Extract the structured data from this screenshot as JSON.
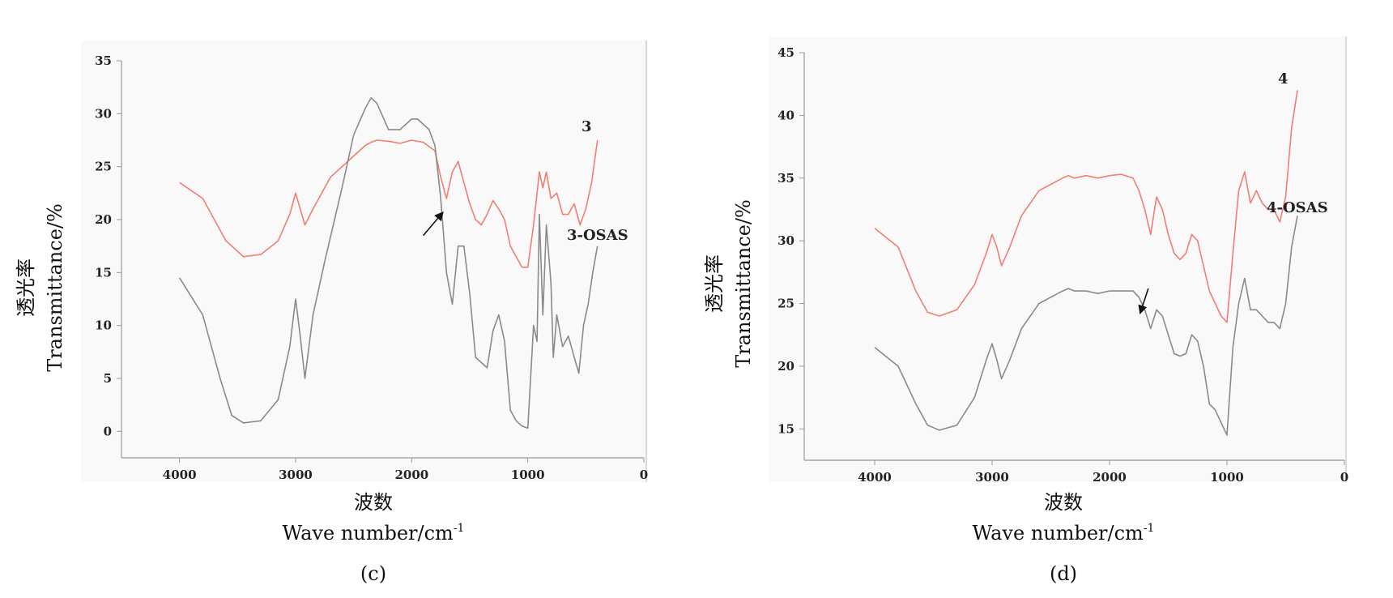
{
  "chart_data": [
    {
      "type": "line",
      "panel_label": "(c)",
      "ylabel_cn": "透光率",
      "ylabel_en": "Transmittance/%",
      "xlabel_cn": "波数",
      "xlabel_en": "Wave  number/cm",
      "xlabel_sup": "-1",
      "xlim": [
        4500,
        0
      ],
      "ylim": [
        -2.5,
        35
      ],
      "xticks": [
        "4000",
        "3000",
        "2000",
        "1000",
        "0"
      ],
      "yticks": [
        "0",
        "5",
        "10",
        "15",
        "20",
        "25",
        "30",
        "35"
      ],
      "grid": false,
      "series": [
        {
          "name": "3",
          "color": "#f07e74",
          "x": [
            4000,
            3800,
            3600,
            3450,
            3300,
            3150,
            3050,
            3000,
            2960,
            2920,
            2850,
            2700,
            2550,
            2400,
            2350,
            2300,
            2200,
            2100,
            2000,
            1900,
            1800,
            1750,
            1700,
            1650,
            1600,
            1550,
            1500,
            1450,
            1400,
            1350,
            1300,
            1250,
            1200,
            1150,
            1100,
            1050,
            1000,
            950,
            900,
            870,
            840,
            800,
            750,
            700,
            650,
            600,
            550,
            500,
            450,
            400
          ],
          "y": [
            23.5,
            22.0,
            18.0,
            16.5,
            16.7,
            18.0,
            20.5,
            22.5,
            21.0,
            19.5,
            21.0,
            24.0,
            25.5,
            27.0,
            27.3,
            27.5,
            27.4,
            27.2,
            27.5,
            27.3,
            26.5,
            24.0,
            22.0,
            24.5,
            25.5,
            23.5,
            21.5,
            20.0,
            19.5,
            20.5,
            21.8,
            21.0,
            20.0,
            17.5,
            16.5,
            15.5,
            15.5,
            19.5,
            24.5,
            23.0,
            24.5,
            22.0,
            22.5,
            20.5,
            20.5,
            21.5,
            19.5,
            21.0,
            23.5,
            27.5
          ]
        },
        {
          "name": "3-OSAS",
          "color": "#8a8a8a",
          "x": [
            4000,
            3800,
            3650,
            3550,
            3450,
            3300,
            3150,
            3050,
            3000,
            2960,
            2920,
            2850,
            2750,
            2600,
            2500,
            2400,
            2350,
            2300,
            2200,
            2100,
            2000,
            1950,
            1850,
            1800,
            1750,
            1700,
            1650,
            1600,
            1550,
            1500,
            1450,
            1400,
            1350,
            1300,
            1250,
            1200,
            1150,
            1100,
            1050,
            1000,
            950,
            920,
            900,
            870,
            840,
            800,
            780,
            750,
            700,
            650,
            600,
            560,
            520,
            480,
            440,
            400
          ],
          "y": [
            14.5,
            11.0,
            5.0,
            1.5,
            0.8,
            1.0,
            3.0,
            8.0,
            12.5,
            9.0,
            5.0,
            11.0,
            16.0,
            23.0,
            28.0,
            30.5,
            31.5,
            31.0,
            28.5,
            28.5,
            29.5,
            29.5,
            28.5,
            27.0,
            22.0,
            15.0,
            12.0,
            17.5,
            17.5,
            13.0,
            7.0,
            6.5,
            6.0,
            9.5,
            11.0,
            8.5,
            2.0,
            1.0,
            0.5,
            0.3,
            10.0,
            8.5,
            20.5,
            11.0,
            19.5,
            14.0,
            7.0,
            11.0,
            8.0,
            9.0,
            7.0,
            5.5,
            10.0,
            12.0,
            15.0,
            17.5
          ]
        }
      ],
      "annotations": [
        {
          "type": "arrow",
          "from": [
            1900,
            18.5
          ],
          "to": [
            1730,
            20.7
          ]
        }
      ]
    },
    {
      "type": "line",
      "panel_label": "(d)",
      "ylabel_cn": "透光率",
      "ylabel_en": "Transmittance/%",
      "xlabel_cn": "波数",
      "xlabel_en": "Wave  number/cm",
      "xlabel_sup": "-1",
      "xlim": [
        4600,
        0
      ],
      "ylim": [
        12.5,
        45
      ],
      "xticks": [
        "4000",
        "3000",
        "2000",
        "1000",
        "0"
      ],
      "yticks": [
        "15",
        "20",
        "25",
        "30",
        "35",
        "40",
        "45"
      ],
      "grid": false,
      "series": [
        {
          "name": "4",
          "color": "#f07e74",
          "x": [
            4000,
            3800,
            3650,
            3550,
            3450,
            3300,
            3150,
            3050,
            3000,
            2960,
            2920,
            2850,
            2750,
            2600,
            2400,
            2350,
            2300,
            2200,
            2100,
            2000,
            1900,
            1800,
            1750,
            1700,
            1650,
            1600,
            1550,
            1500,
            1450,
            1400,
            1350,
            1300,
            1250,
            1200,
            1150,
            1100,
            1050,
            1000,
            950,
            900,
            850,
            800,
            750,
            700,
            650,
            600,
            550,
            500,
            450,
            400
          ],
          "y": [
            31.0,
            29.5,
            26.0,
            24.3,
            24.0,
            24.5,
            26.5,
            29.0,
            30.5,
            29.5,
            28.0,
            29.5,
            32.0,
            34.0,
            35.0,
            35.2,
            35.0,
            35.2,
            35.0,
            35.2,
            35.3,
            35.0,
            34.0,
            32.5,
            30.5,
            33.5,
            32.5,
            30.5,
            29.0,
            28.5,
            29.0,
            30.5,
            30.0,
            28.0,
            26.0,
            25.0,
            24.0,
            23.5,
            29.0,
            34.0,
            35.5,
            33.0,
            34.0,
            33.0,
            32.5,
            32.5,
            31.5,
            33.5,
            39.0,
            42.0
          ]
        },
        {
          "name": "4-OSAS",
          "color": "#8a8a8a",
          "x": [
            4000,
            3800,
            3650,
            3550,
            3450,
            3300,
            3150,
            3050,
            3000,
            2960,
            2920,
            2850,
            2750,
            2600,
            2400,
            2350,
            2300,
            2200,
            2100,
            2000,
            1900,
            1800,
            1750,
            1700,
            1650,
            1600,
            1550,
            1500,
            1450,
            1400,
            1350,
            1300,
            1250,
            1200,
            1150,
            1100,
            1050,
            1000,
            950,
            900,
            850,
            800,
            750,
            700,
            650,
            600,
            550,
            500,
            450,
            400
          ],
          "y": [
            21.5,
            20.0,
            17.0,
            15.3,
            14.9,
            15.3,
            17.5,
            20.5,
            21.8,
            20.5,
            19.0,
            20.5,
            23.0,
            25.0,
            26.0,
            26.2,
            26.0,
            26.0,
            25.8,
            26.0,
            26.0,
            26.0,
            25.5,
            24.5,
            23.0,
            24.5,
            24.0,
            22.5,
            21.0,
            20.8,
            21.0,
            22.5,
            22.0,
            20.0,
            17.0,
            16.5,
            15.5,
            14.5,
            21.5,
            25.0,
            27.0,
            24.5,
            24.5,
            24.0,
            23.5,
            23.5,
            23.0,
            25.0,
            29.5,
            32.0
          ]
        }
      ],
      "annotations": [
        {
          "type": "arrow",
          "from": [
            1670,
            26.2
          ],
          "to": [
            1740,
            24.2
          ]
        }
      ]
    }
  ]
}
